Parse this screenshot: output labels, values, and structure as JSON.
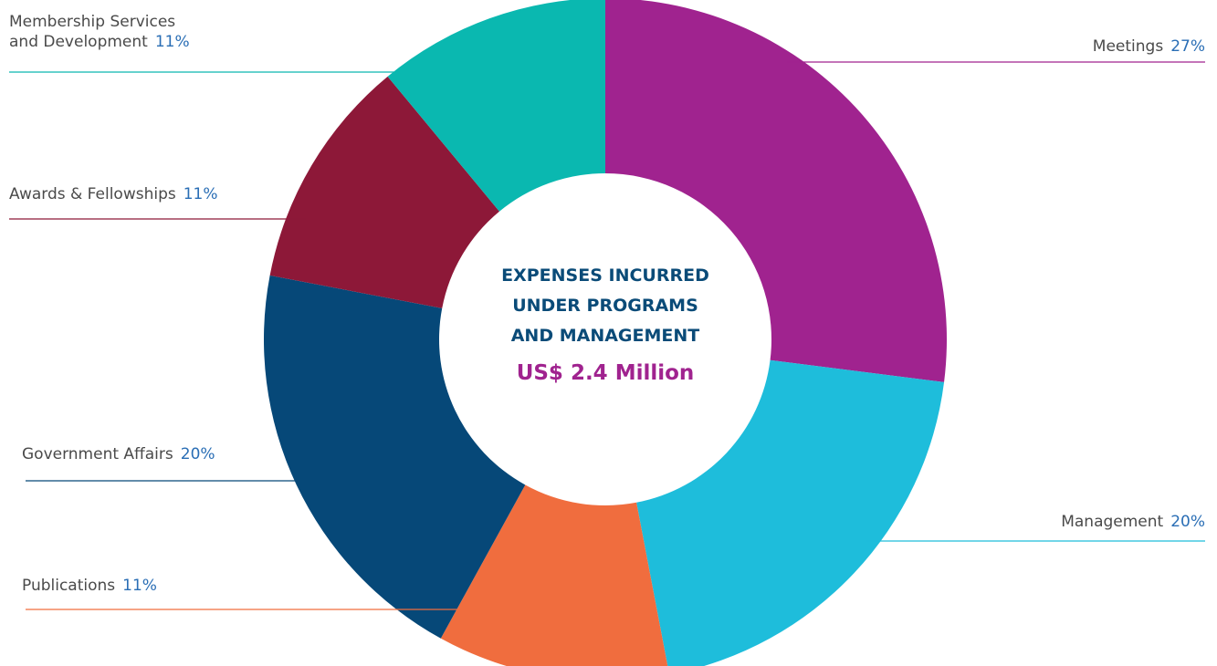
{
  "chart_data": {
    "type": "pie",
    "variant": "donut",
    "title": "EXPENSES INCURRED\nUNDER PROGRAMS\nAND MANAGEMENT",
    "total": "US$ 2.4 Million",
    "unit": "%",
    "legend": "none",
    "slices": [
      {
        "name": "Meetings",
        "value": 27,
        "label": "27%",
        "color": "#a0238f"
      },
      {
        "name": "Management",
        "value": 20,
        "label": "20%",
        "color": "#1ebddb"
      },
      {
        "name": "Publications",
        "value": 11,
        "label": "11%",
        "color": "#f06d3e"
      },
      {
        "name": "Government Affairs",
        "value": 20,
        "label": "20%",
        "color": "#064878"
      },
      {
        "name": "Awards & Fellowships",
        "value": 11,
        "label": "11%",
        "color": "#8d1838"
      },
      {
        "name": "Membership Services and Development",
        "name_lines": [
          "Membership Services",
          "and Development"
        ],
        "value": 11,
        "label": "11%",
        "color": "#0ab8b0"
      }
    ]
  }
}
